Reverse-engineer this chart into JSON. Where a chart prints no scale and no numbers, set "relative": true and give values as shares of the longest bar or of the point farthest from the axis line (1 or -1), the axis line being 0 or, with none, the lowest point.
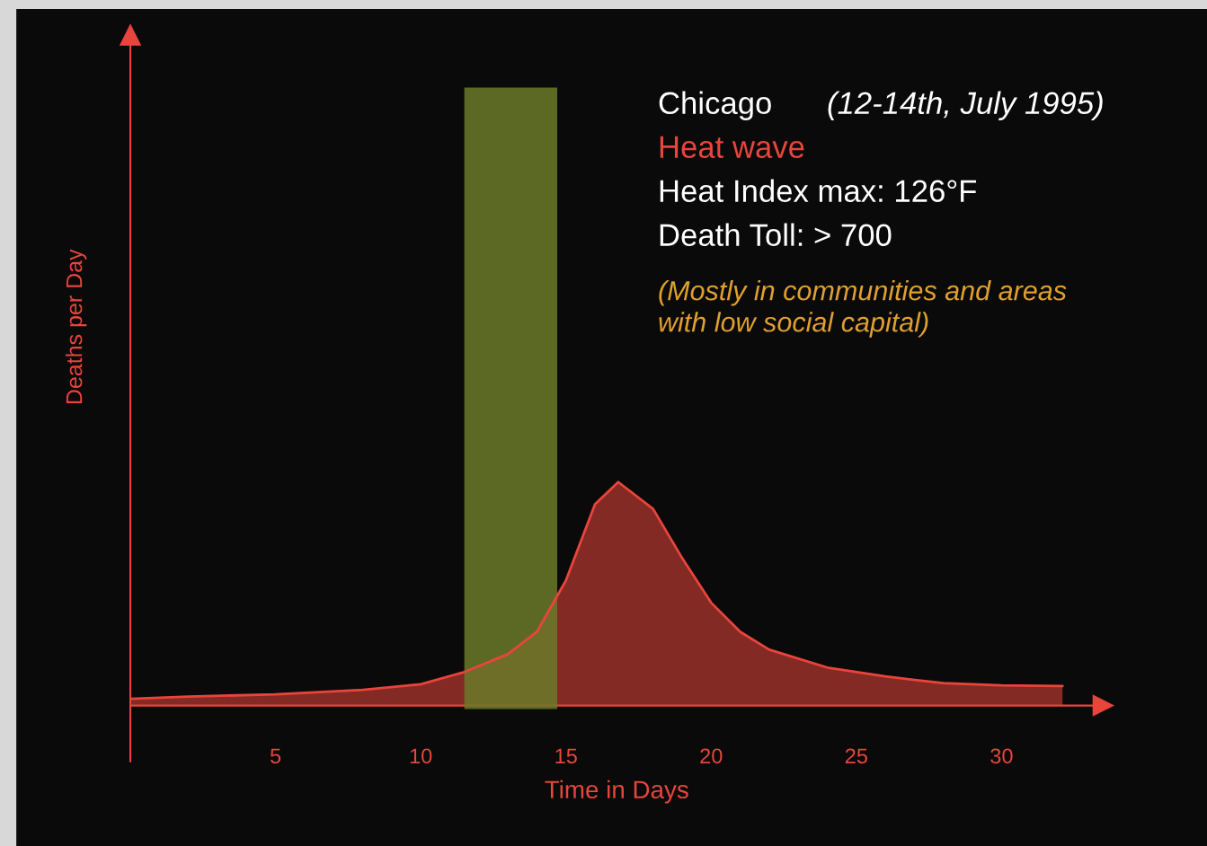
{
  "chart_data": {
    "type": "area",
    "relative": true,
    "xlabel": "Time in Days",
    "ylabel": "Deaths per Day",
    "xlim": [
      0,
      33.5
    ],
    "xticks": [
      5,
      10,
      15,
      20,
      25,
      30
    ],
    "series": [
      {
        "color": "#e8453c",
        "x": [
          0,
          2,
          5,
          8,
          10,
          11.5,
          13,
          14,
          15,
          16,
          16.8,
          18,
          19,
          20,
          21,
          22,
          24,
          26,
          28,
          30,
          32.1
        ],
        "values": [
          0.03,
          0.04,
          0.05,
          0.07,
          0.095,
          0.15,
          0.23,
          0.33,
          0.56,
          0.9,
          1,
          0.88,
          0.66,
          0.46,
          0.33,
          0.25,
          0.17,
          0.13,
          0.1,
          0.09,
          0.087
        ]
      }
    ],
    "bands": [
      {
        "axis": "x",
        "from": 11.5,
        "to": 14.7,
        "color": "#6b7a2a"
      }
    ],
    "annotations": [
      "Chicago",
      "(12-14th, July 1995)",
      "Heat wave",
      "Heat Index max: 126°F",
      "Death Toll: > 700",
      "(Mostly in communities and areas\nwith low social capital)"
    ],
    "grid": false,
    "legend": false
  }
}
